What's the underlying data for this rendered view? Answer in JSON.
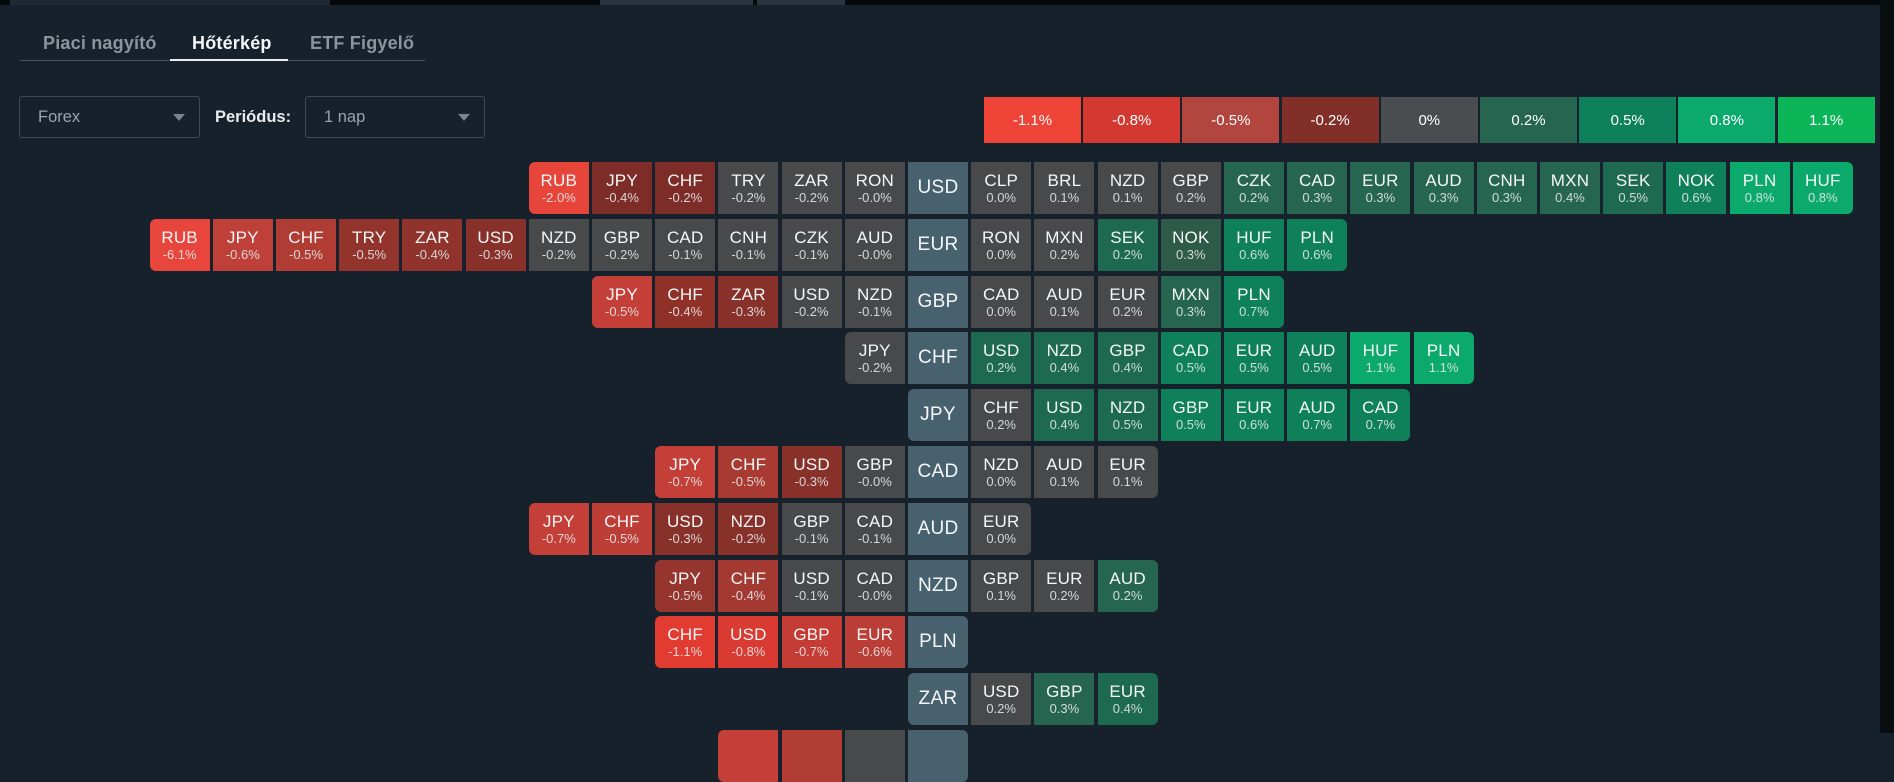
{
  "tabs": {
    "items": [
      {
        "label": "Piaci nagyító",
        "active": false
      },
      {
        "label": "Hőtérkép",
        "active": true
      },
      {
        "label": "ETF Figyelő",
        "active": false
      }
    ]
  },
  "controls": {
    "asset_class": {
      "value": "Forex"
    },
    "period_label": "Periódus:",
    "period": {
      "value": "1 nap"
    }
  },
  "legend": {
    "items": [
      {
        "label": "-1.1%",
        "color": "#ee4337"
      },
      {
        "label": "-0.8%",
        "color": "#d33931"
      },
      {
        "label": "-0.5%",
        "color": "#b2453d"
      },
      {
        "label": "-0.2%",
        "color": "#832f29"
      },
      {
        "label": "0%",
        "color": "#4a4d4f"
      },
      {
        "label": "0.2%",
        "color": "#266651"
      },
      {
        "label": "0.5%",
        "color": "#0e815b"
      },
      {
        "label": "0.8%",
        "color": "#0ca96d"
      },
      {
        "label": "1.1%",
        "color": "#0cb658"
      }
    ]
  },
  "heatmap": {
    "base_tile_color": "#48616f",
    "rows": [
      {
        "base": "USD",
        "left_cells": 6,
        "cells": [
          {
            "code": "RUB",
            "pct": "-2.0%",
            "color": "#e8453a"
          },
          {
            "code": "JPY",
            "pct": "-0.4%",
            "color": "#7e2c27"
          },
          {
            "code": "CHF",
            "pct": "-0.2%",
            "color": "#7e2c27"
          },
          {
            "code": "TRY",
            "pct": "-0.2%",
            "color": "#47494b"
          },
          {
            "code": "ZAR",
            "pct": "-0.2%",
            "color": "#47494b"
          },
          {
            "code": "RON",
            "pct": "-0.0%",
            "color": "#47494b"
          },
          {
            "code": "USD",
            "base": true
          },
          {
            "code": "CLP",
            "pct": "0.0%",
            "color": "#47494b"
          },
          {
            "code": "BRL",
            "pct": "0.1%",
            "color": "#47494b"
          },
          {
            "code": "NZD",
            "pct": "0.1%",
            "color": "#47494b"
          },
          {
            "code": "GBP",
            "pct": "0.2%",
            "color": "#47494b"
          },
          {
            "code": "CZK",
            "pct": "0.2%",
            "color": "#266651"
          },
          {
            "code": "CAD",
            "pct": "0.3%",
            "color": "#266651"
          },
          {
            "code": "EUR",
            "pct": "0.3%",
            "color": "#266651"
          },
          {
            "code": "AUD",
            "pct": "0.3%",
            "color": "#266651"
          },
          {
            "code": "CNH",
            "pct": "0.3%",
            "color": "#266651"
          },
          {
            "code": "MXN",
            "pct": "0.4%",
            "color": "#266651"
          },
          {
            "code": "SEK",
            "pct": "0.5%",
            "color": "#1d6a50"
          },
          {
            "code": "NOK",
            "pct": "0.6%",
            "color": "#0e815b"
          },
          {
            "code": "PLN",
            "pct": "0.8%",
            "color": "#0ca96d"
          },
          {
            "code": "HUF",
            "pct": "0.8%",
            "color": "#0ca96d"
          }
        ]
      },
      {
        "base": "EUR",
        "left_cells": 12,
        "cells": [
          {
            "code": "RUB",
            "pct": "-6.1%",
            "color": "#e8463c"
          },
          {
            "code": "JPY",
            "pct": "-0.6%",
            "color": "#bf4038"
          },
          {
            "code": "CHF",
            "pct": "-0.5%",
            "color": "#b03c34"
          },
          {
            "code": "TRY",
            "pct": "-0.5%",
            "color": "#93342c"
          },
          {
            "code": "ZAR",
            "pct": "-0.4%",
            "color": "#8f332c"
          },
          {
            "code": "USD",
            "pct": "-0.3%",
            "color": "#88302a"
          },
          {
            "code": "NZD",
            "pct": "-0.2%",
            "color": "#47494b"
          },
          {
            "code": "GBP",
            "pct": "-0.2%",
            "color": "#47494b"
          },
          {
            "code": "CAD",
            "pct": "-0.1%",
            "color": "#47494b"
          },
          {
            "code": "CNH",
            "pct": "-0.1%",
            "color": "#47494b"
          },
          {
            "code": "CZK",
            "pct": "-0.1%",
            "color": "#47494b"
          },
          {
            "code": "AUD",
            "pct": "-0.0%",
            "color": "#47494b"
          },
          {
            "code": "EUR",
            "base": true
          },
          {
            "code": "RON",
            "pct": "0.0%",
            "color": "#47494b"
          },
          {
            "code": "MXN",
            "pct": "0.2%",
            "color": "#47494b"
          },
          {
            "code": "SEK",
            "pct": "0.2%",
            "color": "#1d6a50"
          },
          {
            "code": "NOK",
            "pct": "0.3%",
            "color": "#2d5a49"
          },
          {
            "code": "HUF",
            "pct": "0.6%",
            "color": "#0e815b"
          },
          {
            "code": "PLN",
            "pct": "0.6%",
            "color": "#0e815b"
          }
        ]
      },
      {
        "base": "GBP",
        "left_cells": 5,
        "cells": [
          {
            "code": "JPY",
            "pct": "-0.5%",
            "color": "#c33f37"
          },
          {
            "code": "CHF",
            "pct": "-0.4%",
            "color": "#903129"
          },
          {
            "code": "ZAR",
            "pct": "-0.3%",
            "color": "#88302a"
          },
          {
            "code": "USD",
            "pct": "-0.2%",
            "color": "#47494b"
          },
          {
            "code": "NZD",
            "pct": "-0.1%",
            "color": "#47494b"
          },
          {
            "code": "GBP",
            "base": true
          },
          {
            "code": "CAD",
            "pct": "0.0%",
            "color": "#47494b"
          },
          {
            "code": "AUD",
            "pct": "0.1%",
            "color": "#47494b"
          },
          {
            "code": "EUR",
            "pct": "0.2%",
            "color": "#47494b"
          },
          {
            "code": "MXN",
            "pct": "0.3%",
            "color": "#266651"
          },
          {
            "code": "PLN",
            "pct": "0.7%",
            "color": "#0e815b"
          }
        ]
      },
      {
        "base": "CHF",
        "left_cells": 1,
        "cells": [
          {
            "code": "JPY",
            "pct": "-0.2%",
            "color": "#47494b"
          },
          {
            "code": "CHF",
            "base": true
          },
          {
            "code": "USD",
            "pct": "0.2%",
            "color": "#1d6a50"
          },
          {
            "code": "NZD",
            "pct": "0.4%",
            "color": "#1d6a50"
          },
          {
            "code": "GBP",
            "pct": "0.4%",
            "color": "#1d6a50"
          },
          {
            "code": "CAD",
            "pct": "0.5%",
            "color": "#0e815b"
          },
          {
            "code": "EUR",
            "pct": "0.5%",
            "color": "#0e815b"
          },
          {
            "code": "AUD",
            "pct": "0.5%",
            "color": "#0e815b"
          },
          {
            "code": "HUF",
            "pct": "1.1%",
            "color": "#0ca96d"
          },
          {
            "code": "PLN",
            "pct": "1.1%",
            "color": "#0ca96d"
          }
        ]
      },
      {
        "base": "JPY",
        "left_cells": 0,
        "cells": [
          {
            "code": "JPY",
            "base": true
          },
          {
            "code": "CHF",
            "pct": "0.2%",
            "color": "#47494b"
          },
          {
            "code": "USD",
            "pct": "0.4%",
            "color": "#1d6a50"
          },
          {
            "code": "NZD",
            "pct": "0.5%",
            "color": "#1d6a50"
          },
          {
            "code": "GBP",
            "pct": "0.5%",
            "color": "#0e815b"
          },
          {
            "code": "EUR",
            "pct": "0.6%",
            "color": "#0e815b"
          },
          {
            "code": "AUD",
            "pct": "0.7%",
            "color": "#0e815b"
          },
          {
            "code": "CAD",
            "pct": "0.7%",
            "color": "#0e815b"
          }
        ]
      },
      {
        "base": "CAD",
        "left_cells": 4,
        "cells": [
          {
            "code": "JPY",
            "pct": "-0.7%",
            "color": "#c33f37"
          },
          {
            "code": "CHF",
            "pct": "-0.5%",
            "color": "#a83a32"
          },
          {
            "code": "USD",
            "pct": "-0.3%",
            "color": "#88302a"
          },
          {
            "code": "GBP",
            "pct": "-0.0%",
            "color": "#47494b"
          },
          {
            "code": "CAD",
            "base": true
          },
          {
            "code": "NZD",
            "pct": "0.0%",
            "color": "#47494b"
          },
          {
            "code": "AUD",
            "pct": "0.1%",
            "color": "#47494b"
          },
          {
            "code": "EUR",
            "pct": "0.1%",
            "color": "#47494b"
          }
        ]
      },
      {
        "base": "AUD",
        "left_cells": 6,
        "cells": [
          {
            "code": "JPY",
            "pct": "-0.7%",
            "color": "#c33f37"
          },
          {
            "code": "CHF",
            "pct": "-0.5%",
            "color": "#bc3e36"
          },
          {
            "code": "USD",
            "pct": "-0.3%",
            "color": "#88302a"
          },
          {
            "code": "NZD",
            "pct": "-0.2%",
            "color": "#88302a"
          },
          {
            "code": "GBP",
            "pct": "-0.1%",
            "color": "#47494b"
          },
          {
            "code": "CAD",
            "pct": "-0.1%",
            "color": "#47494b"
          },
          {
            "code": "AUD",
            "base": true
          },
          {
            "code": "EUR",
            "pct": "0.0%",
            "color": "#47494b"
          }
        ]
      },
      {
        "base": "NZD",
        "left_cells": 4,
        "cells": [
          {
            "code": "JPY",
            "pct": "-0.5%",
            "color": "#96352e"
          },
          {
            "code": "CHF",
            "pct": "-0.4%",
            "color": "#a33931"
          },
          {
            "code": "USD",
            "pct": "-0.1%",
            "color": "#47494b"
          },
          {
            "code": "CAD",
            "pct": "-0.0%",
            "color": "#47494b"
          },
          {
            "code": "NZD",
            "base": true
          },
          {
            "code": "GBP",
            "pct": "0.1%",
            "color": "#47494b"
          },
          {
            "code": "EUR",
            "pct": "0.2%",
            "color": "#47494b"
          },
          {
            "code": "AUD",
            "pct": "0.2%",
            "color": "#266651"
          }
        ]
      },
      {
        "base": "PLN",
        "left_cells": 4,
        "cells": [
          {
            "code": "CHF",
            "pct": "-1.1%",
            "color": "#e23c32"
          },
          {
            "code": "USD",
            "pct": "-0.8%",
            "color": "#d93a31"
          },
          {
            "code": "GBP",
            "pct": "-0.7%",
            "color": "#c43c34"
          },
          {
            "code": "EUR",
            "pct": "-0.6%",
            "color": "#ba3e36"
          },
          {
            "code": "PLN",
            "base": true
          }
        ]
      },
      {
        "base": "ZAR",
        "left_cells": 0,
        "cells": [
          {
            "code": "ZAR",
            "base": true
          },
          {
            "code": "USD",
            "pct": "0.2%",
            "color": "#47494b"
          },
          {
            "code": "GBP",
            "pct": "0.3%",
            "color": "#266651"
          },
          {
            "code": "EUR",
            "pct": "0.4%",
            "color": "#1d6a50"
          }
        ]
      },
      {
        "base": "",
        "left_cells": 3,
        "partial": true,
        "cells": [
          {
            "color": "#c33f37"
          },
          {
            "color": "#b03c34"
          },
          {
            "color": "#47494b"
          },
          {
            "base": true
          }
        ]
      }
    ]
  }
}
